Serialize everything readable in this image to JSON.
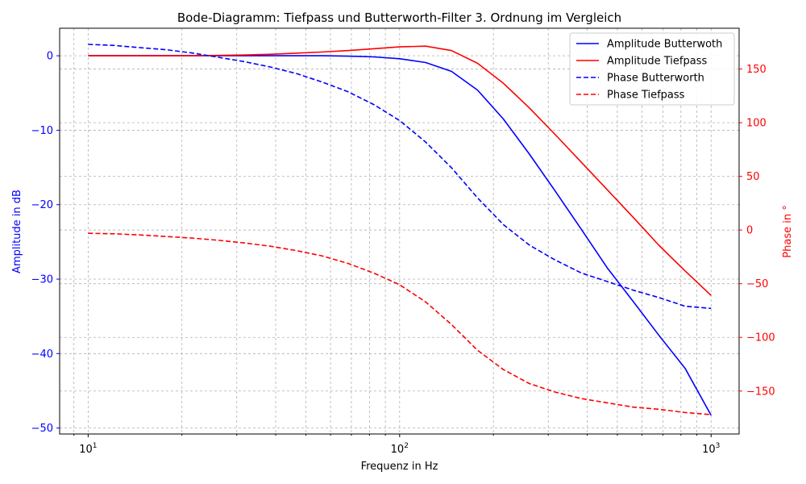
{
  "chart_data": {
    "type": "line",
    "title": "Bode-Diagramm: Tiefpass und Butterworth-Filter 3. Ordnung im Vergleich",
    "xlabel": "Frequenz in Hz",
    "ylabel_left": "Amplitude in dB",
    "ylabel_right": "Phase in °",
    "x_scale": "log",
    "xlim": [
      8.1,
      1230
    ],
    "ylim_left": [
      -50.8,
      3.7
    ],
    "ylim_right": [
      -190,
      188
    ],
    "grid": true,
    "legend_position": "top-right",
    "x_ticks": [
      {
        "base": "10",
        "exp": "1",
        "value": 10
      },
      {
        "base": "10",
        "exp": "2",
        "value": 100
      },
      {
        "base": "10",
        "exp": "3",
        "value": 1000
      }
    ],
    "y_left_ticks": [
      {
        "label": "0",
        "value": 0
      },
      {
        "label": "−10",
        "value": -10
      },
      {
        "label": "−20",
        "value": -20
      },
      {
        "label": "−30",
        "value": -30
      },
      {
        "label": "−40",
        "value": -40
      },
      {
        "label": "−50",
        "value": -50
      }
    ],
    "y_right_ticks": [
      {
        "label": "150",
        "value": 150
      },
      {
        "label": "100",
        "value": 100
      },
      {
        "label": "50",
        "value": 50
      },
      {
        "label": "0",
        "value": 0
      },
      {
        "label": "−50",
        "value": -50
      },
      {
        "label": "−100",
        "value": -100
      },
      {
        "label": "−150",
        "value": -150
      }
    ],
    "x": [
      10,
      12.1,
      14.6,
      17.8,
      21.5,
      26.1,
      31.6,
      38.3,
      46.4,
      56.2,
      68.1,
      82.5,
      100,
      121.2,
      146.8,
      177.8,
      215.4,
      261,
      316.2,
      383.1,
      464.2,
      562.3,
      681.3,
      825.4,
      1000
    ],
    "series": [
      {
        "name": "Amplitude Butterwoth",
        "axis": "left",
        "color": "#0000ff",
        "dash": "solid",
        "values": [
          0,
          0,
          0,
          0,
          0,
          0,
          0,
          0,
          0,
          0,
          -0.05,
          -0.15,
          -0.4,
          -0.9,
          -2.1,
          -4.6,
          -8.5,
          -13.2,
          -18.2,
          -23.3,
          -28.5,
          -33.0,
          -37.6,
          -42.0,
          -48.3
        ]
      },
      {
        "name": "Amplitude Tiefpass",
        "axis": "left",
        "color": "#ff0000",
        "dash": "solid",
        "values": [
          0,
          0,
          0,
          0,
          0,
          0.05,
          0.1,
          0.2,
          0.35,
          0.5,
          0.7,
          0.95,
          1.2,
          1.3,
          0.7,
          -1.0,
          -3.7,
          -7.0,
          -10.6,
          -14.3,
          -18.0,
          -21.7,
          -25.5,
          -28.9,
          -32.2
        ]
      },
      {
        "name": "Phase Butterworth",
        "axis": "right",
        "color": "#0000ff",
        "dash": "dashed",
        "values": [
          173,
          172,
          170,
          168,
          165,
          161,
          157,
          152,
          146,
          138,
          129,
          117,
          102,
          82,
          58,
          30,
          5,
          -14,
          -28,
          -40,
          -48,
          -56,
          -63,
          -71,
          -73
        ]
      },
      {
        "name": "Phase Tiefpass",
        "axis": "right",
        "color": "#ff0000",
        "dash": "dashed",
        "values": [
          -3,
          -3.5,
          -4.5,
          -6,
          -7.5,
          -9.5,
          -12,
          -15,
          -19,
          -24,
          -31,
          -40,
          -51,
          -67,
          -88,
          -112,
          -130,
          -143,
          -151,
          -157,
          -161,
          -165,
          -167,
          -170,
          -172
        ]
      }
    ]
  }
}
